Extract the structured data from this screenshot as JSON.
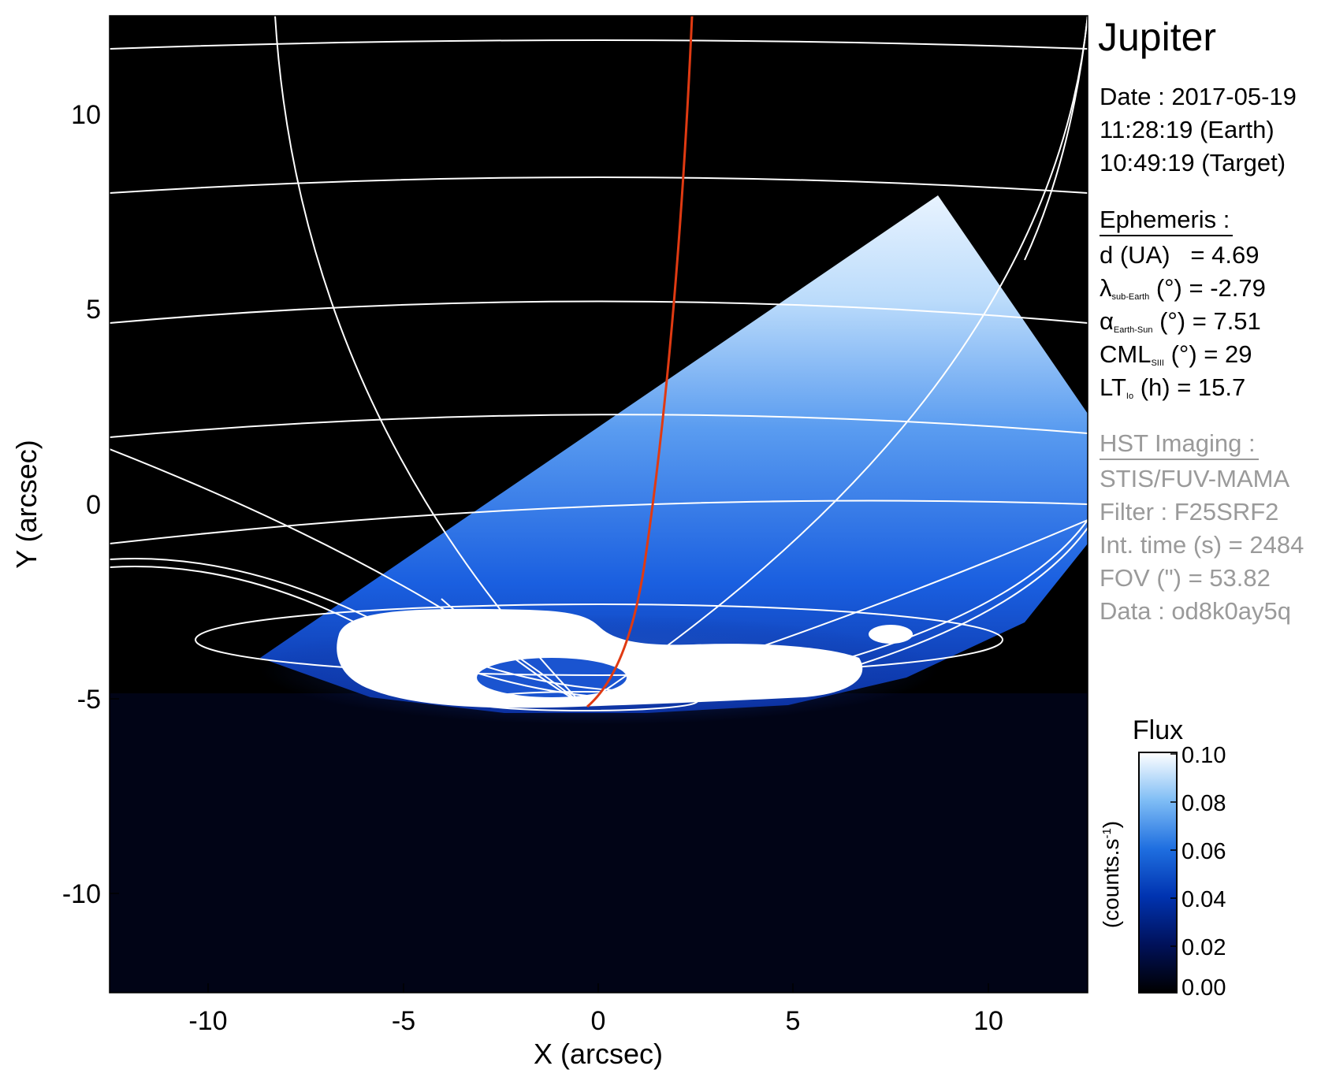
{
  "title": "Jupiter",
  "observation": {
    "date": "Date : 2017-05-19",
    "time_earth": "11:28:19 (Earth)",
    "time_target": "10:49:19 (Target)"
  },
  "ephemeris": {
    "header": "Ephemeris :",
    "d_label": "d (UA)",
    "d_value": "= 4.69",
    "lat_sym": "λ",
    "lat_sub": "sub-Earth",
    "lat_value": "(°) = -2.79",
    "phase_sym": "α",
    "phase_sub": "Earth-Sun",
    "phase_value": "(°) = 7.51",
    "cml_sym": "CML",
    "cml_sub": "SIII",
    "cml_value": "(°) = 29",
    "lt_sym": "LT",
    "lt_sub": "Io",
    "lt_value": "(h) = 15.7"
  },
  "hst": {
    "header": "HST Imaging :",
    "instrument": "STIS/FUV-MAMA",
    "filter": "Filter : F25SRF2",
    "int_time": "Int. time (s) = 2484",
    "fov": "FOV (\") = 53.82",
    "data": "Data : od8k0ay5q"
  },
  "axes": {
    "xlabel": "X (arcsec)",
    "ylabel": "Y (arcsec)",
    "xticks": [
      "-10",
      "-5",
      "0",
      "5",
      "10"
    ],
    "yticks": [
      "10",
      "5",
      "0",
      "-5",
      "-10"
    ],
    "xlim": [
      -12.5,
      12.5
    ],
    "ylim": [
      -12.5,
      12.5
    ]
  },
  "colorbar": {
    "title": "Flux",
    "label": "(counts.s",
    "label_exp": "-1",
    "label_end": ")",
    "ticks": [
      "0.10",
      "0.08",
      "0.06",
      "0.04",
      "0.02",
      "0.00"
    ],
    "range": [
      0.0,
      0.1
    ],
    "colors": [
      "#000000",
      "#00115a",
      "#0033b0",
      "#1f6fe0",
      "#7fbdf5",
      "#ffffff"
    ]
  },
  "colors": {
    "background": "#000000",
    "grid": "#ffffff",
    "footprint_line": "#e03a12",
    "aurora": "#ffffff",
    "disk": "#1a55d6"
  }
}
